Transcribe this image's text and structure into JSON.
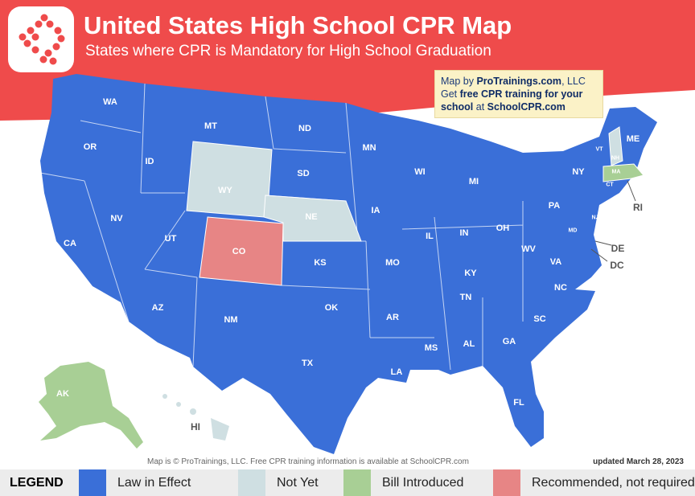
{
  "header": {
    "title": "United States High School CPR Map",
    "subtitle": "States where CPR is Mandatory for High School Graduation"
  },
  "info": {
    "line1_pre": "Map by ",
    "line1_brand": "ProTrainings.com",
    "line1_post": ", LLC",
    "line2_pre": "Get ",
    "line2_bold": "free CPR training for your school",
    "line2_mid": " at ",
    "line2_site": "SchoolCPR.com"
  },
  "footer": {
    "credit": "Map is © ProTrainings, LLC. Free CPR training information is available at SchoolCPR.com",
    "updated": "updated March 28, 2023"
  },
  "colors": {
    "header": "#ef4b4b",
    "law": "#3a6fd8",
    "not_yet": "#cfdfe2",
    "bill": "#a8cf95",
    "recommended": "#e78585"
  },
  "legend": {
    "title": "LEGEND",
    "items": [
      {
        "label": "Law in Effect",
        "status": "law"
      },
      {
        "label": "Not Yet",
        "status": "not_yet"
      },
      {
        "label": "Bill Introduced",
        "status": "bill"
      },
      {
        "label": "Recommended, not required",
        "status": "recommended"
      }
    ]
  },
  "states": [
    {
      "abbr": "WA",
      "status": "law"
    },
    {
      "abbr": "OR",
      "status": "law"
    },
    {
      "abbr": "CA",
      "status": "law"
    },
    {
      "abbr": "ID",
      "status": "law"
    },
    {
      "abbr": "NV",
      "status": "law"
    },
    {
      "abbr": "MT",
      "status": "law"
    },
    {
      "abbr": "WY",
      "status": "not_yet"
    },
    {
      "abbr": "UT",
      "status": "law"
    },
    {
      "abbr": "AZ",
      "status": "law"
    },
    {
      "abbr": "CO",
      "status": "recommended"
    },
    {
      "abbr": "NM",
      "status": "law"
    },
    {
      "abbr": "ND",
      "status": "law"
    },
    {
      "abbr": "SD",
      "status": "law"
    },
    {
      "abbr": "NE",
      "status": "not_yet"
    },
    {
      "abbr": "KS",
      "status": "law"
    },
    {
      "abbr": "OK",
      "status": "law"
    },
    {
      "abbr": "TX",
      "status": "law"
    },
    {
      "abbr": "MN",
      "status": "law"
    },
    {
      "abbr": "IA",
      "status": "law"
    },
    {
      "abbr": "MO",
      "status": "law"
    },
    {
      "abbr": "AR",
      "status": "law"
    },
    {
      "abbr": "LA",
      "status": "law"
    },
    {
      "abbr": "WI",
      "status": "law"
    },
    {
      "abbr": "IL",
      "status": "law"
    },
    {
      "abbr": "MI",
      "status": "law"
    },
    {
      "abbr": "IN",
      "status": "law"
    },
    {
      "abbr": "OH",
      "status": "law"
    },
    {
      "abbr": "KY",
      "status": "law"
    },
    {
      "abbr": "TN",
      "status": "law"
    },
    {
      "abbr": "MS",
      "status": "law"
    },
    {
      "abbr": "AL",
      "status": "law"
    },
    {
      "abbr": "GA",
      "status": "law"
    },
    {
      "abbr": "FL",
      "status": "law"
    },
    {
      "abbr": "SC",
      "status": "law"
    },
    {
      "abbr": "NC",
      "status": "law"
    },
    {
      "abbr": "VA",
      "status": "law"
    },
    {
      "abbr": "WV",
      "status": "law"
    },
    {
      "abbr": "PA",
      "status": "law"
    },
    {
      "abbr": "NY",
      "status": "law"
    },
    {
      "abbr": "VT",
      "status": "law"
    },
    {
      "abbr": "NH",
      "status": "not_yet"
    },
    {
      "abbr": "ME",
      "status": "law"
    },
    {
      "abbr": "MA",
      "status": "bill"
    },
    {
      "abbr": "CT",
      "status": "law"
    },
    {
      "abbr": "RI",
      "status": "law"
    },
    {
      "abbr": "NJ",
      "status": "law"
    },
    {
      "abbr": "DE",
      "status": "law"
    },
    {
      "abbr": "MD",
      "status": "law"
    },
    {
      "abbr": "DC",
      "status": "law"
    },
    {
      "abbr": "AK",
      "status": "bill"
    },
    {
      "abbr": "HI",
      "status": "not_yet"
    }
  ]
}
